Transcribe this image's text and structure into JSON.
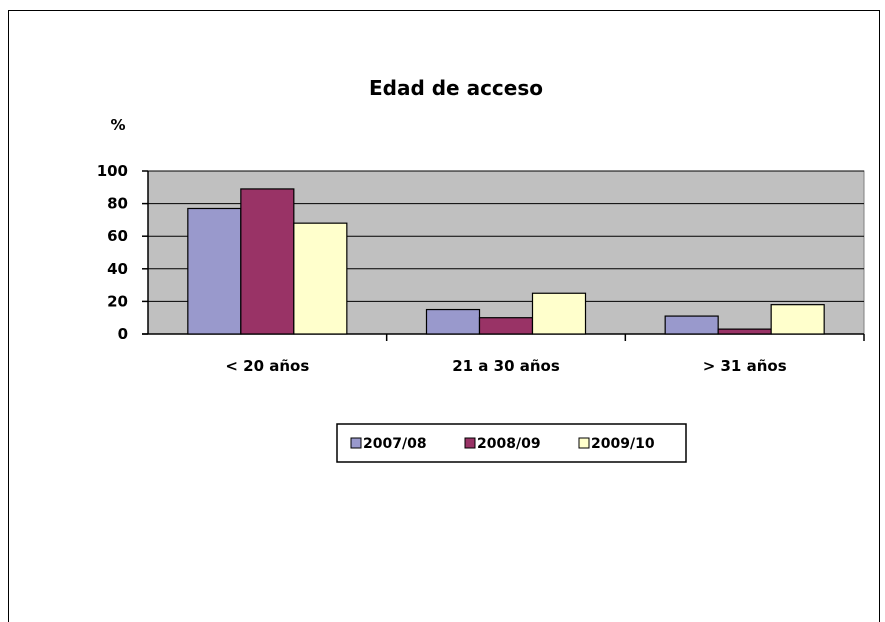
{
  "chart_data": {
    "type": "bar",
    "title": "Edad de acceso",
    "ylabel": "%",
    "xlabel": "",
    "categories": [
      "< 20 años",
      "21 a 30 años",
      "> 31 años"
    ],
    "series": [
      {
        "name": "2007/08",
        "values": [
          77,
          15,
          11
        ],
        "color": "#9999cc"
      },
      {
        "name": "2008/09",
        "values": [
          89,
          10,
          3
        ],
        "color": "#993366"
      },
      {
        "name": "2009/10",
        "values": [
          68,
          25,
          18
        ],
        "color": "#ffffcc"
      }
    ],
    "ylim": [
      0,
      100
    ],
    "yticks": [
      "0",
      "20",
      "40",
      "60",
      "80",
      "100"
    ],
    "grid": true,
    "plot_background": "#c0c0c0",
    "legend_position": "bottom"
  }
}
